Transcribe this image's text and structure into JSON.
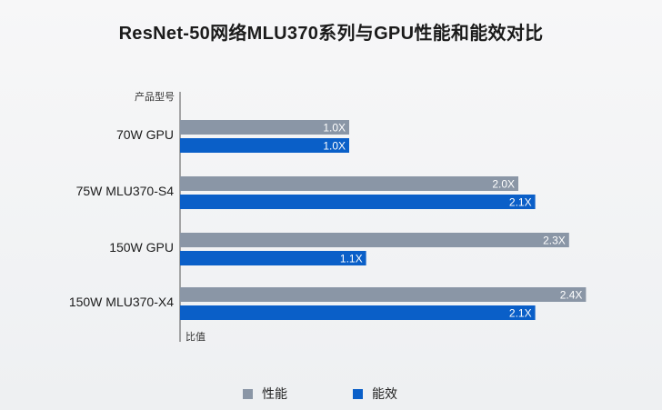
{
  "chart_data": {
    "type": "bar",
    "orientation": "horizontal",
    "title": "ResNet-50网络MLU370系列与GPU性能和能效对比",
    "ylabel": "产品型号",
    "xlabel": "比值",
    "categories": [
      "70W GPU",
      "75W MLU370-S4",
      "150W GPU",
      "150W MLU370-X4"
    ],
    "series": [
      {
        "name": "性能",
        "values": [
          1.0,
          2.0,
          2.3,
          2.4
        ],
        "labels": [
          "1.0X",
          "2.0X",
          "2.3X",
          "2.4X"
        ],
        "color": "#8a96a6"
      },
      {
        "name": "能效",
        "values": [
          1.0,
          2.1,
          1.1,
          2.1
        ],
        "labels": [
          "1.0X",
          "2.1X",
          "1.1X",
          "2.1X"
        ],
        "color": "#0a5fc8"
      }
    ],
    "xlim": [
      0,
      2.5
    ],
    "grid": false,
    "legend_position": "bottom"
  }
}
